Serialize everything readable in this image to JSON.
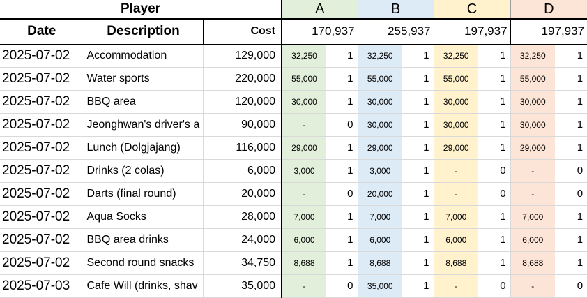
{
  "colors": {
    "A": "#e2efda",
    "B": "#ddebf7",
    "C": "#fff2cc",
    "D": "#fce4d6"
  },
  "title": "Player",
  "headers": {
    "date": "Date",
    "description": "Description",
    "cost": "Cost"
  },
  "players": [
    {
      "name": "A",
      "total": "170,937"
    },
    {
      "name": "B",
      "total": "255,937"
    },
    {
      "name": "C",
      "total": "197,937"
    },
    {
      "name": "D",
      "total": "197,937"
    }
  ],
  "rows": [
    {
      "date": "2025-07-02",
      "description": "Accommodation",
      "cost": "129,000",
      "shares": [
        {
          "amount": "32,250",
          "count": "1"
        },
        {
          "amount": "32,250",
          "count": "1"
        },
        {
          "amount": "32,250",
          "count": "1"
        },
        {
          "amount": "32,250",
          "count": "1"
        }
      ]
    },
    {
      "date": "2025-07-02",
      "description": "Water sports",
      "cost": "220,000",
      "shares": [
        {
          "amount": "55,000",
          "count": "1"
        },
        {
          "amount": "55,000",
          "count": "1"
        },
        {
          "amount": "55,000",
          "count": "1"
        },
        {
          "amount": "55,000",
          "count": "1"
        }
      ]
    },
    {
      "date": "2025-07-02",
      "description": "BBQ area",
      "cost": "120,000",
      "shares": [
        {
          "amount": "30,000",
          "count": "1"
        },
        {
          "amount": "30,000",
          "count": "1"
        },
        {
          "amount": "30,000",
          "count": "1"
        },
        {
          "amount": "30,000",
          "count": "1"
        }
      ]
    },
    {
      "date": "2025-07-02",
      "description": "Jeonghwan's driver's a",
      "cost": "90,000",
      "shares": [
        {
          "amount": "-",
          "count": "0"
        },
        {
          "amount": "30,000",
          "count": "1"
        },
        {
          "amount": "30,000",
          "count": "1"
        },
        {
          "amount": "30,000",
          "count": "1"
        }
      ]
    },
    {
      "date": "2025-07-02",
      "description": "Lunch (Dolgjajang)",
      "cost": "116,000",
      "shares": [
        {
          "amount": "29,000",
          "count": "1"
        },
        {
          "amount": "29,000",
          "count": "1"
        },
        {
          "amount": "29,000",
          "count": "1"
        },
        {
          "amount": "29,000",
          "count": "1"
        }
      ]
    },
    {
      "date": "2025-07-02",
      "description": "Drinks (2 colas)",
      "cost": "6,000",
      "shares": [
        {
          "amount": "3,000",
          "count": "1"
        },
        {
          "amount": "3,000",
          "count": "1"
        },
        {
          "amount": "-",
          "count": "0"
        },
        {
          "amount": "-",
          "count": "0"
        }
      ]
    },
    {
      "date": "2025-07-02",
      "description": "Darts (final round)",
      "cost": "20,000",
      "shares": [
        {
          "amount": "-",
          "count": "0"
        },
        {
          "amount": "20,000",
          "count": "1"
        },
        {
          "amount": "-",
          "count": "0"
        },
        {
          "amount": "-",
          "count": "0"
        }
      ]
    },
    {
      "date": "2025-07-02",
      "description": "Aqua Socks",
      "cost": "28,000",
      "shares": [
        {
          "amount": "7,000",
          "count": "1"
        },
        {
          "amount": "7,000",
          "count": "1"
        },
        {
          "amount": "7,000",
          "count": "1"
        },
        {
          "amount": "7,000",
          "count": "1"
        }
      ]
    },
    {
      "date": "2025-07-02",
      "description": "BBQ area drinks",
      "cost": "24,000",
      "shares": [
        {
          "amount": "6,000",
          "count": "1"
        },
        {
          "amount": "6,000",
          "count": "1"
        },
        {
          "amount": "6,000",
          "count": "1"
        },
        {
          "amount": "6,000",
          "count": "1"
        }
      ]
    },
    {
      "date": "2025-07-02",
      "description": "Second round snacks",
      "cost": "34,750",
      "shares": [
        {
          "amount": "8,688",
          "count": "1"
        },
        {
          "amount": "8,688",
          "count": "1"
        },
        {
          "amount": "8,688",
          "count": "1"
        },
        {
          "amount": "8,688",
          "count": "1"
        }
      ]
    },
    {
      "date": "2025-07-03",
      "description": "Cafe Will (drinks, shav",
      "cost": "35,000",
      "shares": [
        {
          "amount": "-",
          "count": "0"
        },
        {
          "amount": "35,000",
          "count": "1"
        },
        {
          "amount": "-",
          "count": "0"
        },
        {
          "amount": "-",
          "count": "0"
        }
      ]
    }
  ]
}
